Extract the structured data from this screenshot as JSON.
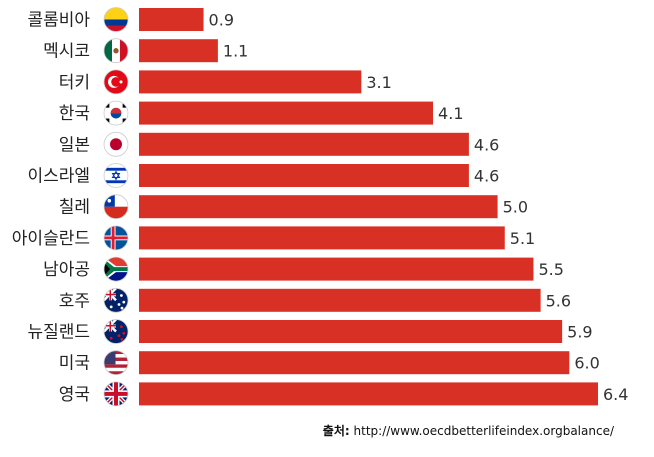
{
  "chart_data": {
    "type": "bar",
    "orientation": "horizontal",
    "categories": [
      "콜롬비아",
      "멕시코",
      "터키",
      "한국",
      "일본",
      "이스라엘",
      "칠레",
      "아이슬란드",
      "남아공",
      "호주",
      "뉴질랜드",
      "미국",
      "영국"
    ],
    "values": [
      0.9,
      1.1,
      3.1,
      4.1,
      4.6,
      4.6,
      5.0,
      5.1,
      5.5,
      5.6,
      5.9,
      6.0,
      6.4
    ],
    "value_labels": [
      "0.9",
      "1.1",
      "3.1",
      "4.1",
      "4.6",
      "4.6",
      "5.0",
      "5.1",
      "5.5",
      "5.6",
      "5.9",
      "6.0",
      "6.4"
    ],
    "flags": [
      "colombia-flag-icon",
      "mexico-flag-icon",
      "turkey-flag-icon",
      "korea-flag-icon",
      "japan-flag-icon",
      "israel-flag-icon",
      "chile-flag-icon",
      "iceland-flag-icon",
      "south-africa-flag-icon",
      "australia-flag-icon",
      "new-zealand-flag-icon",
      "usa-flag-icon",
      "uk-flag-icon"
    ],
    "bar_color": "#d93025",
    "xlim": [
      0,
      6.4
    ],
    "grid": false,
    "legend": "none"
  },
  "source": {
    "label": "출처:",
    "url": "http://www.oecdbetterlifeindex.orgbalance/"
  }
}
